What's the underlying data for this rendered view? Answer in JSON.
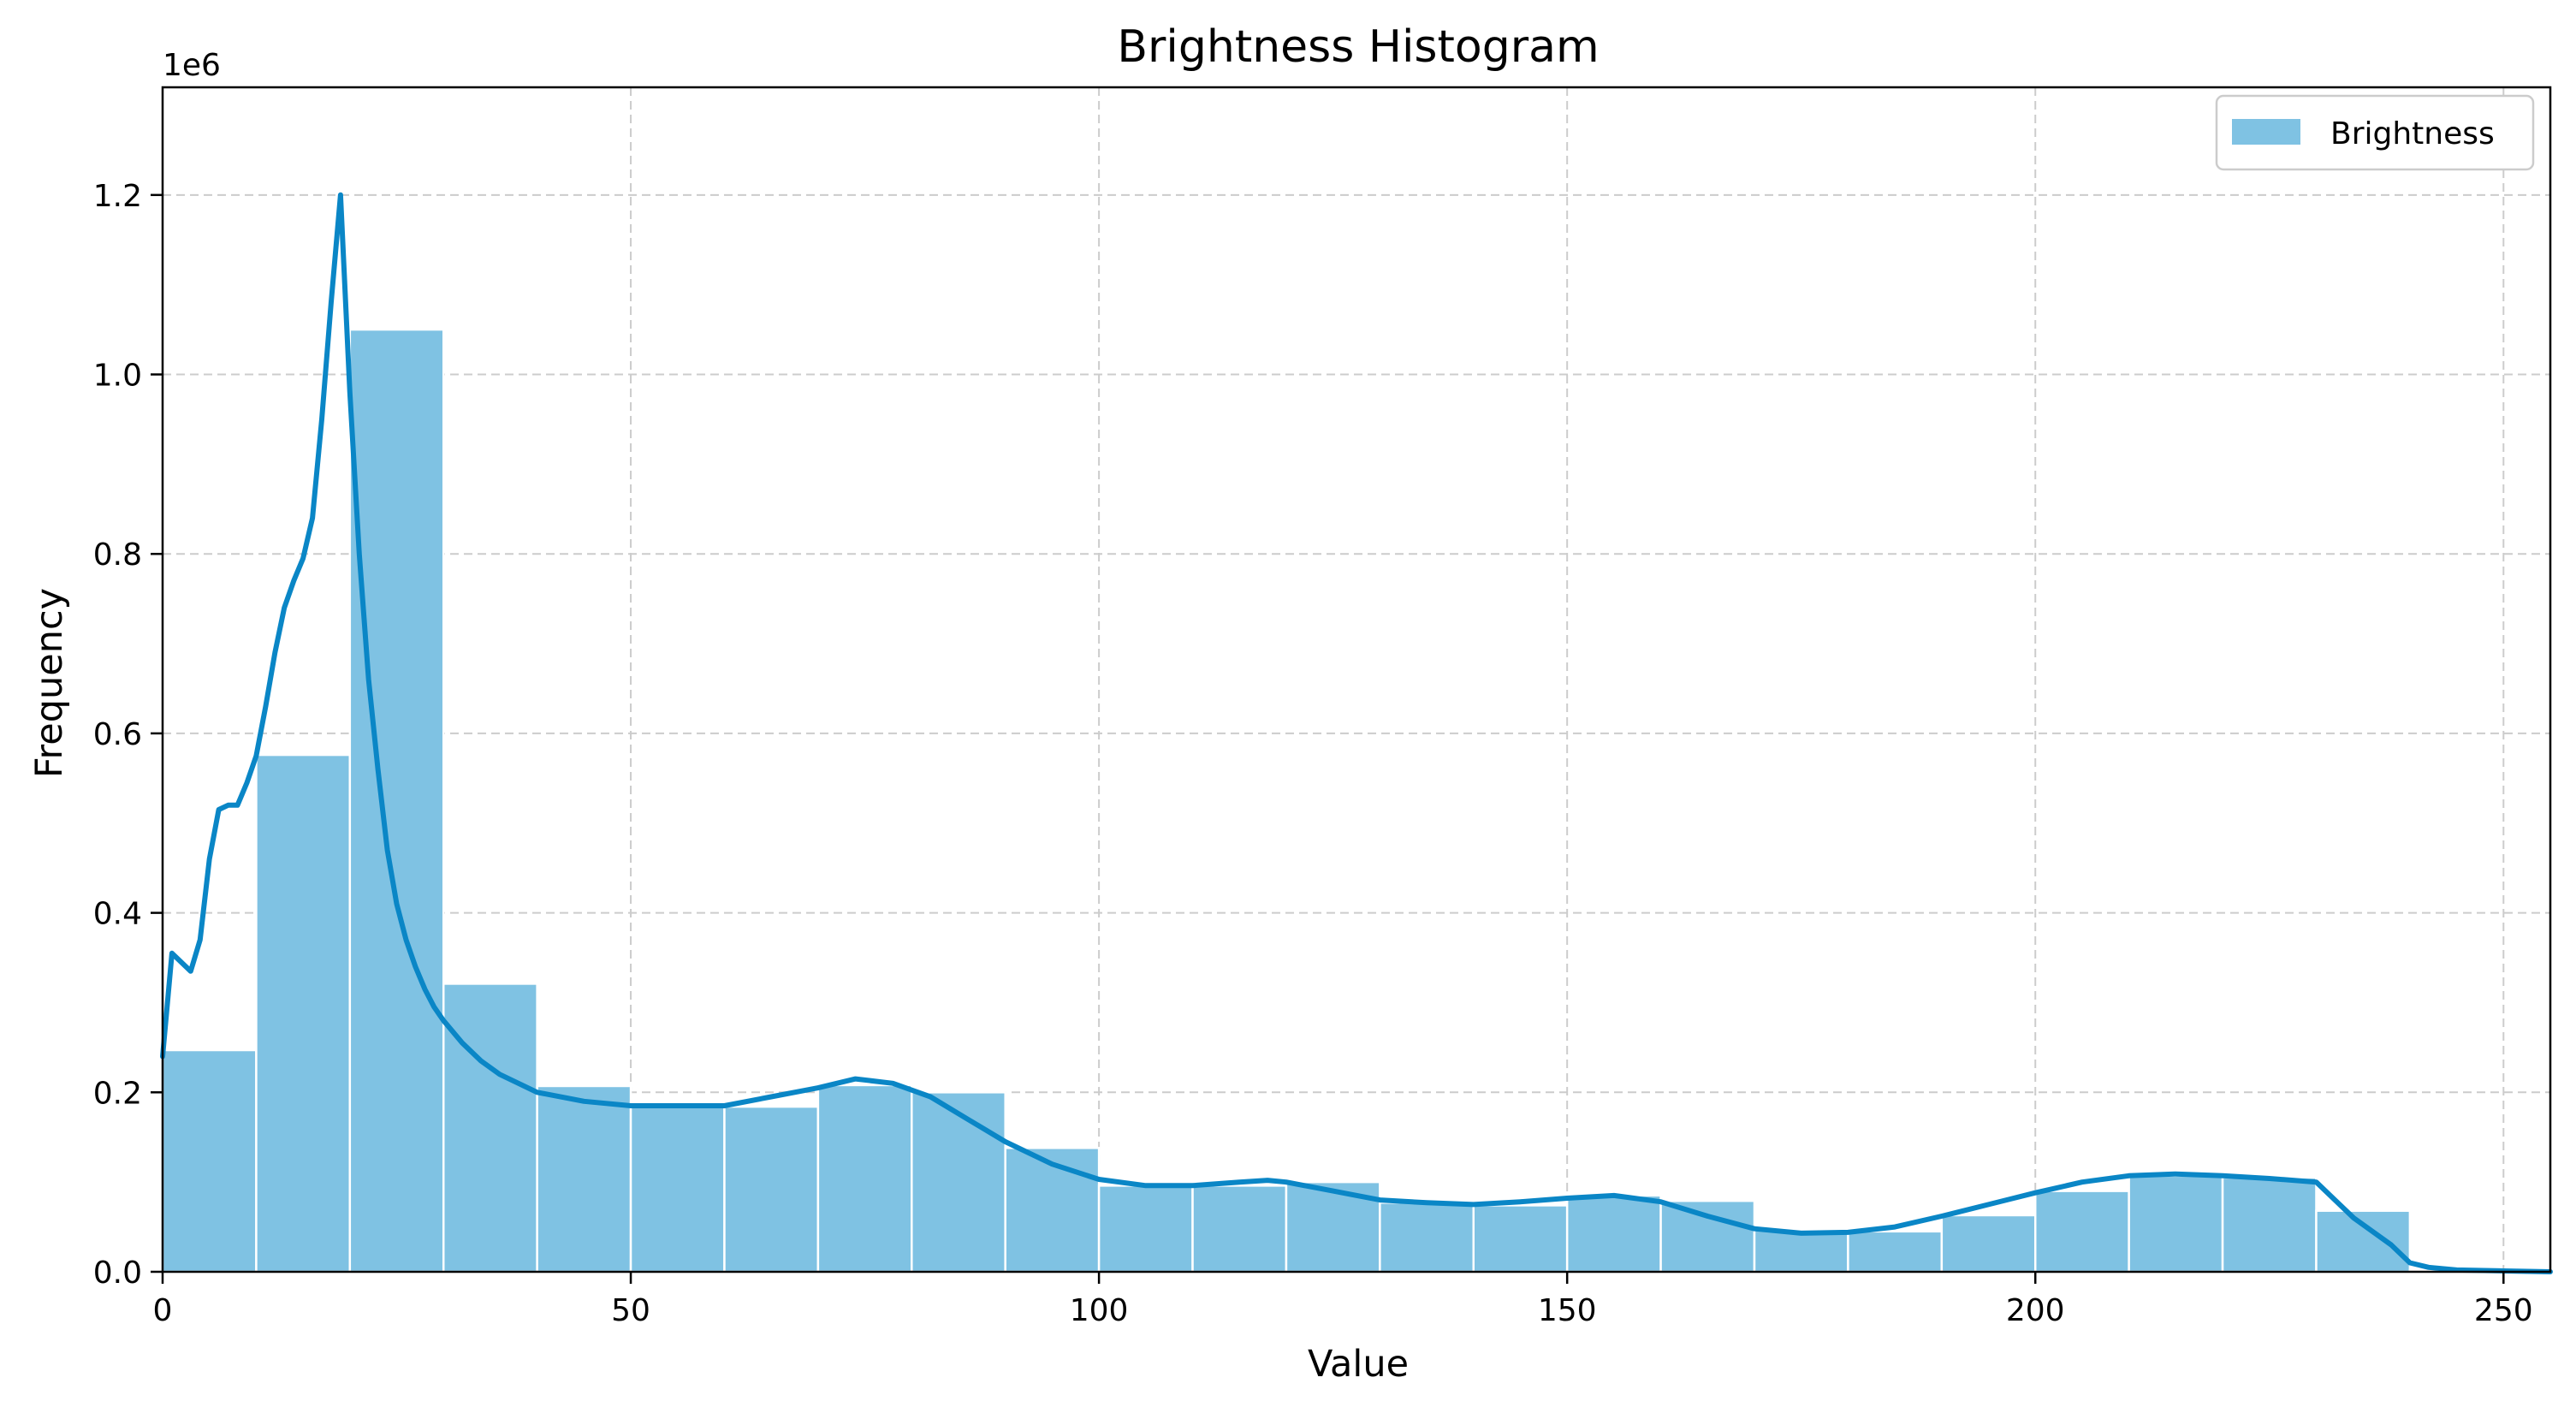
{
  "chart_data": {
    "type": "bar",
    "title": "Brightness Histogram",
    "xlabel": "Value",
    "ylabel": "Frequency",
    "y_offset_text": "1e6",
    "xlim": [
      0,
      255
    ],
    "ylim": [
      0,
      1.32
    ],
    "x_ticks": [
      0,
      50,
      100,
      150,
      200,
      250
    ],
    "x_tick_labels": [
      "0",
      "50",
      "100",
      "150",
      "200",
      "250"
    ],
    "y_ticks": [
      0,
      0.2,
      0.4,
      0.6,
      0.8,
      1.0,
      1.2
    ],
    "y_tick_labels": [
      "0.0",
      "0.2",
      "0.4",
      "0.6",
      "0.8",
      "1.0",
      "1.2"
    ],
    "grid": true,
    "legend_position": "top-right",
    "colors": {
      "bar_fill": "#7fc2e3",
      "bar_edge": "#ffffff",
      "kde_line": "#0a86c6",
      "grid": "#cccccc"
    },
    "series": [
      {
        "name": "Brightness",
        "bin_width": 10,
        "bin_starts": [
          0,
          10,
          20,
          30,
          40,
          50,
          60,
          70,
          80,
          90,
          100,
          110,
          120,
          130,
          140,
          150,
          160,
          170,
          180,
          190,
          200,
          210,
          220,
          230,
          240,
          250
        ],
        "values": [
          0.247,
          0.576,
          1.05,
          0.321,
          0.207,
          0.188,
          0.184,
          0.208,
          0.2,
          0.138,
          0.096,
          0.096,
          0.1,
          0.077,
          0.074,
          0.085,
          0.079,
          0.047,
          0.045,
          0.063,
          0.09,
          0.107,
          0.105,
          0.068,
          0.002,
          0.001
        ]
      }
    ],
    "kde": {
      "x": [
        0,
        1,
        3,
        4,
        5,
        6,
        7,
        8,
        9,
        10,
        11,
        12,
        13,
        14,
        15,
        16,
        17,
        18,
        19,
        20,
        21,
        22,
        23,
        24,
        25,
        26,
        27,
        28,
        29,
        30,
        32,
        34,
        36,
        38,
        40,
        45,
        50,
        55,
        60,
        65,
        70,
        74,
        78,
        82,
        86,
        90,
        95,
        100,
        105,
        110,
        115,
        118,
        120,
        125,
        130,
        135,
        140,
        145,
        150,
        155,
        160,
        165,
        170,
        175,
        180,
        185,
        190,
        195,
        200,
        205,
        210,
        215,
        220,
        225,
        230,
        234,
        238,
        240,
        242,
        245,
        250,
        255
      ],
      "y": [
        0.24,
        0.355,
        0.335,
        0.37,
        0.46,
        0.515,
        0.52,
        0.52,
        0.545,
        0.575,
        0.63,
        0.69,
        0.74,
        0.77,
        0.795,
        0.84,
        0.95,
        1.08,
        1.2,
        0.98,
        0.8,
        0.66,
        0.56,
        0.47,
        0.41,
        0.37,
        0.34,
        0.315,
        0.295,
        0.28,
        0.255,
        0.235,
        0.22,
        0.21,
        0.2,
        0.19,
        0.185,
        0.185,
        0.185,
        0.195,
        0.205,
        0.215,
        0.21,
        0.195,
        0.17,
        0.145,
        0.12,
        0.103,
        0.096,
        0.096,
        0.1,
        0.102,
        0.1,
        0.09,
        0.08,
        0.077,
        0.075,
        0.078,
        0.082,
        0.085,
        0.078,
        0.062,
        0.048,
        0.043,
        0.044,
        0.05,
        0.062,
        0.075,
        0.088,
        0.1,
        0.107,
        0.109,
        0.107,
        0.104,
        0.1,
        0.06,
        0.03,
        0.01,
        0.005,
        0.002,
        0.001,
        0
      ]
    },
    "legend": [
      "Brightness"
    ]
  }
}
